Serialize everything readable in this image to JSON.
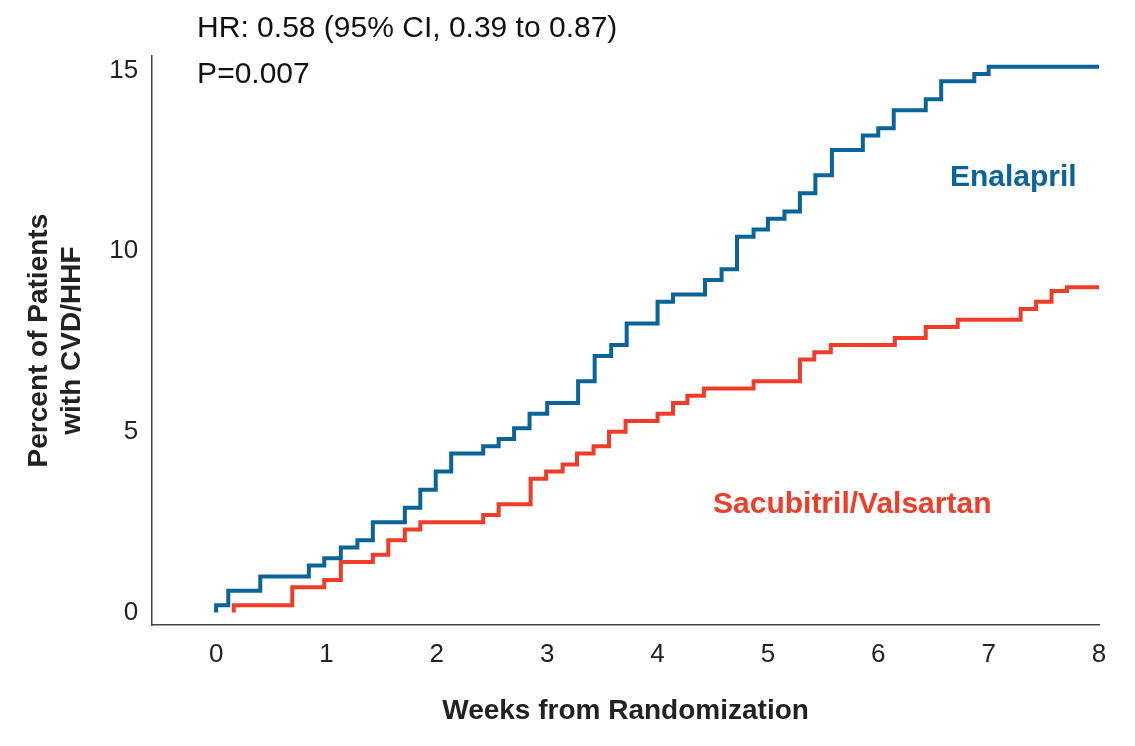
{
  "chart_data": {
    "type": "step",
    "xlabel": "Weeks from Randomization",
    "ylabel": "Percent of Patients with CVD/HHF",
    "annotations": [
      "HR: 0.58 (95% CI, 0.39 to 0.87)",
      "P=0.007"
    ],
    "xlim": [
      -0.58,
      8
    ],
    "xticks": [
      0,
      1,
      2,
      3,
      4,
      5,
      6,
      7,
      8
    ],
    "ylim": [
      -0.35,
      15.4
    ],
    "yticks": [
      0,
      5,
      10,
      15
    ],
    "grid": false,
    "legend": false,
    "marker": "none",
    "line_style": "solid",
    "series": [
      {
        "name": "Enalapril",
        "color": "#0a6399",
        "x": [
          0,
          0.11,
          0.4,
          0.84,
          0.98,
          1.13,
          1.28,
          1.42,
          1.71,
          1.85,
          1.99,
          2.13,
          2.42,
          2.56,
          2.7,
          2.84,
          3.0,
          3.28,
          3.43,
          3.58,
          3.72,
          4.0,
          4.14,
          4.43,
          4.58,
          4.72,
          4.87,
          5.0,
          5.15,
          5.29,
          5.43,
          5.58,
          5.86,
          6.0,
          6.14,
          6.43,
          6.57,
          6.87,
          7.0,
          7.16,
          8
        ],
        "values": [
          0,
          0.2,
          0.6,
          1.0,
          1.3,
          1.5,
          1.8,
          2.0,
          2.5,
          2.9,
          3.4,
          3.9,
          4.4,
          4.6,
          4.8,
          5.1,
          5.5,
          5.8,
          6.4,
          7.1,
          7.4,
          8.0,
          8.6,
          8.8,
          9.2,
          9.5,
          10.4,
          10.6,
          10.9,
          11.1,
          11.6,
          12.1,
          12.8,
          13.2,
          13.4,
          13.9,
          14.2,
          14.7,
          14.9,
          15.1,
          15.1
        ]
      },
      {
        "name": "Sacubitril/Valsartan",
        "color": "#ee3e2a",
        "x": [
          0.16,
          0.69,
          0.98,
          1.13,
          1.42,
          1.56,
          1.71,
          1.85,
          2.42,
          2.56,
          2.85,
          2.99,
          3.14,
          3.27,
          3.42,
          3.56,
          3.71,
          4.0,
          4.14,
          4.27,
          4.42,
          4.87,
          5.29,
          5.42,
          5.57,
          6.15,
          6.43,
          6.72,
          7.29,
          7.43,
          7.57,
          7.71,
          8
        ],
        "values": [
          0,
          0.2,
          0.7,
          0.9,
          1.4,
          1.6,
          2.0,
          2.3,
          2.5,
          2.7,
          3.0,
          3.7,
          3.9,
          4.1,
          4.4,
          4.6,
          5.0,
          5.3,
          5.5,
          5.8,
          6.0,
          6.2,
          6.4,
          7.0,
          7.2,
          7.4,
          7.6,
          7.9,
          8.1,
          8.4,
          8.6,
          8.9,
          9.0
        ]
      }
    ]
  }
}
